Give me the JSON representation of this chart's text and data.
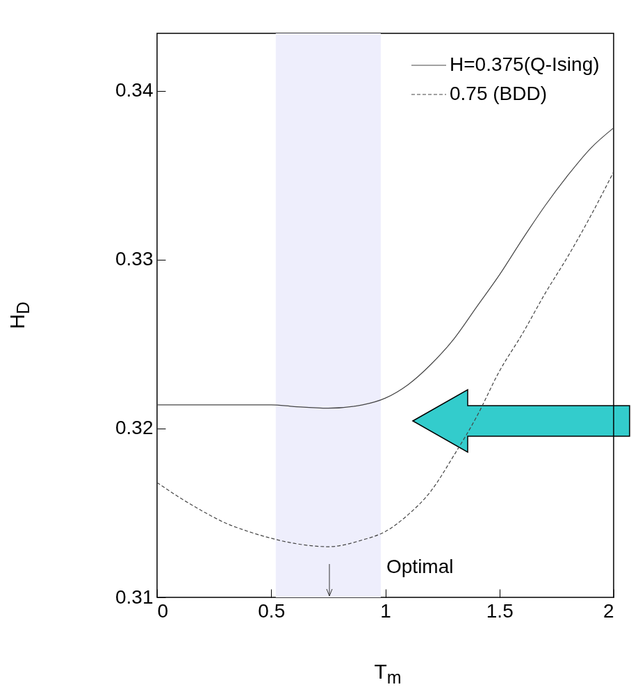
{
  "chart_data": {
    "type": "line",
    "xlabel": "T$_{m}$",
    "ylabel": "H$_{D}$",
    "xlim": [
      0,
      2
    ],
    "xticks": [
      0,
      0.5,
      1,
      1.5,
      2
    ],
    "ylim": [
      0.31,
      0.3434
    ],
    "yticks": [
      0.31,
      0.32,
      0.33,
      0.34
    ],
    "legend": "top right",
    "series": [
      {
        "name": "H=0.375(Q-Ising)",
        "color": "#444444",
        "line_style": "solid",
        "x": [
          0,
          0.5,
          0.6,
          0.75,
          0.9,
          1.0,
          1.1,
          1.2,
          1.3,
          1.4,
          1.5,
          1.6,
          1.7,
          1.8,
          1.9,
          2.0
        ],
        "values": [
          0.3214,
          0.3214,
          0.3213,
          0.3212,
          0.3214,
          0.3218,
          0.3226,
          0.3238,
          0.3253,
          0.3272,
          0.3291,
          0.3312,
          0.3332,
          0.335,
          0.3366,
          0.3378
        ]
      },
      {
        "name": "0.75   (BDD)",
        "color": "#444444",
        "line_style": "dashed",
        "x": [
          0,
          0.1,
          0.2,
          0.3,
          0.4,
          0.5,
          0.6,
          0.75,
          0.9,
          1.0,
          1.1,
          1.2,
          1.3,
          1.4,
          1.5,
          1.6,
          1.7,
          1.8,
          1.9,
          2.0
        ],
        "values": [
          0.3168,
          0.3159,
          0.3151,
          0.3144,
          0.3139,
          0.3135,
          0.3132,
          0.313,
          0.3134,
          0.3139,
          0.3149,
          0.3163,
          0.3184,
          0.3207,
          0.3234,
          0.3256,
          0.328,
          0.3302,
          0.3326,
          0.3352
        ]
      }
    ],
    "bands": [
      {
        "axis": "x",
        "from": 0.52,
        "to": 0.98,
        "color": "#eeeefc"
      }
    ],
    "annotations": [
      "Optimal"
    ]
  }
}
